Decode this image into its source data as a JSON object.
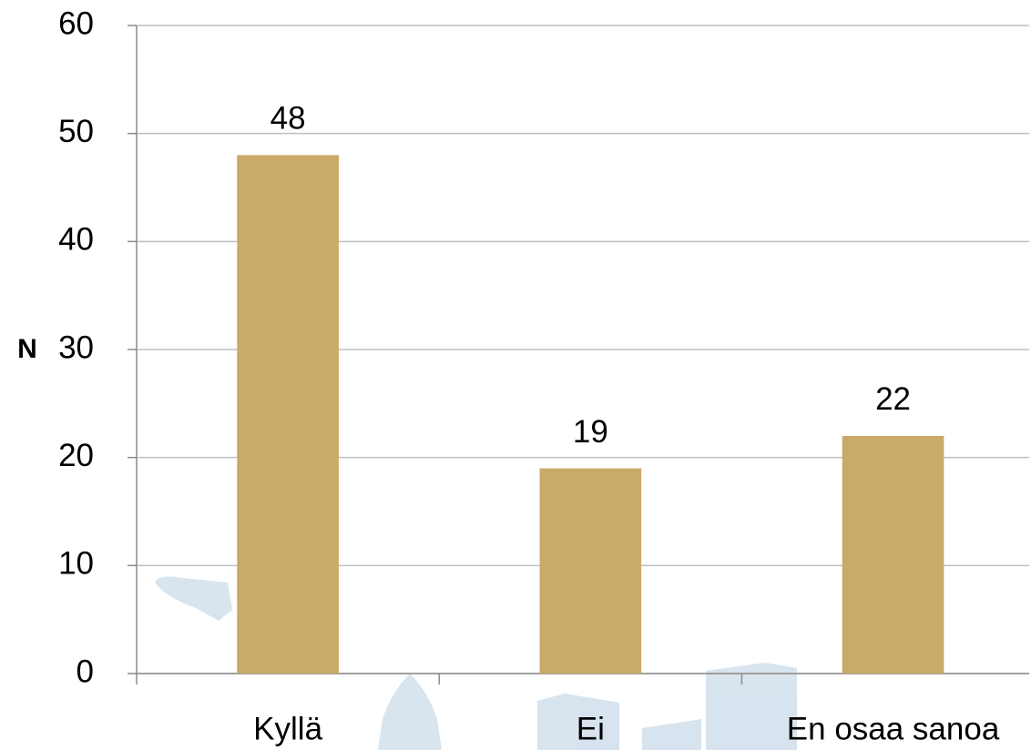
{
  "chart_data": {
    "type": "bar",
    "y_label": "N",
    "categories": [
      "Kyllä",
      "Ei",
      "En osaa sanoa"
    ],
    "values": [
      48,
      19,
      22
    ],
    "color": "#c9aa68",
    "ylim": [
      0,
      60
    ],
    "yticks": [
      0,
      10,
      20,
      30,
      40,
      50,
      60
    ],
    "grid": true
  }
}
